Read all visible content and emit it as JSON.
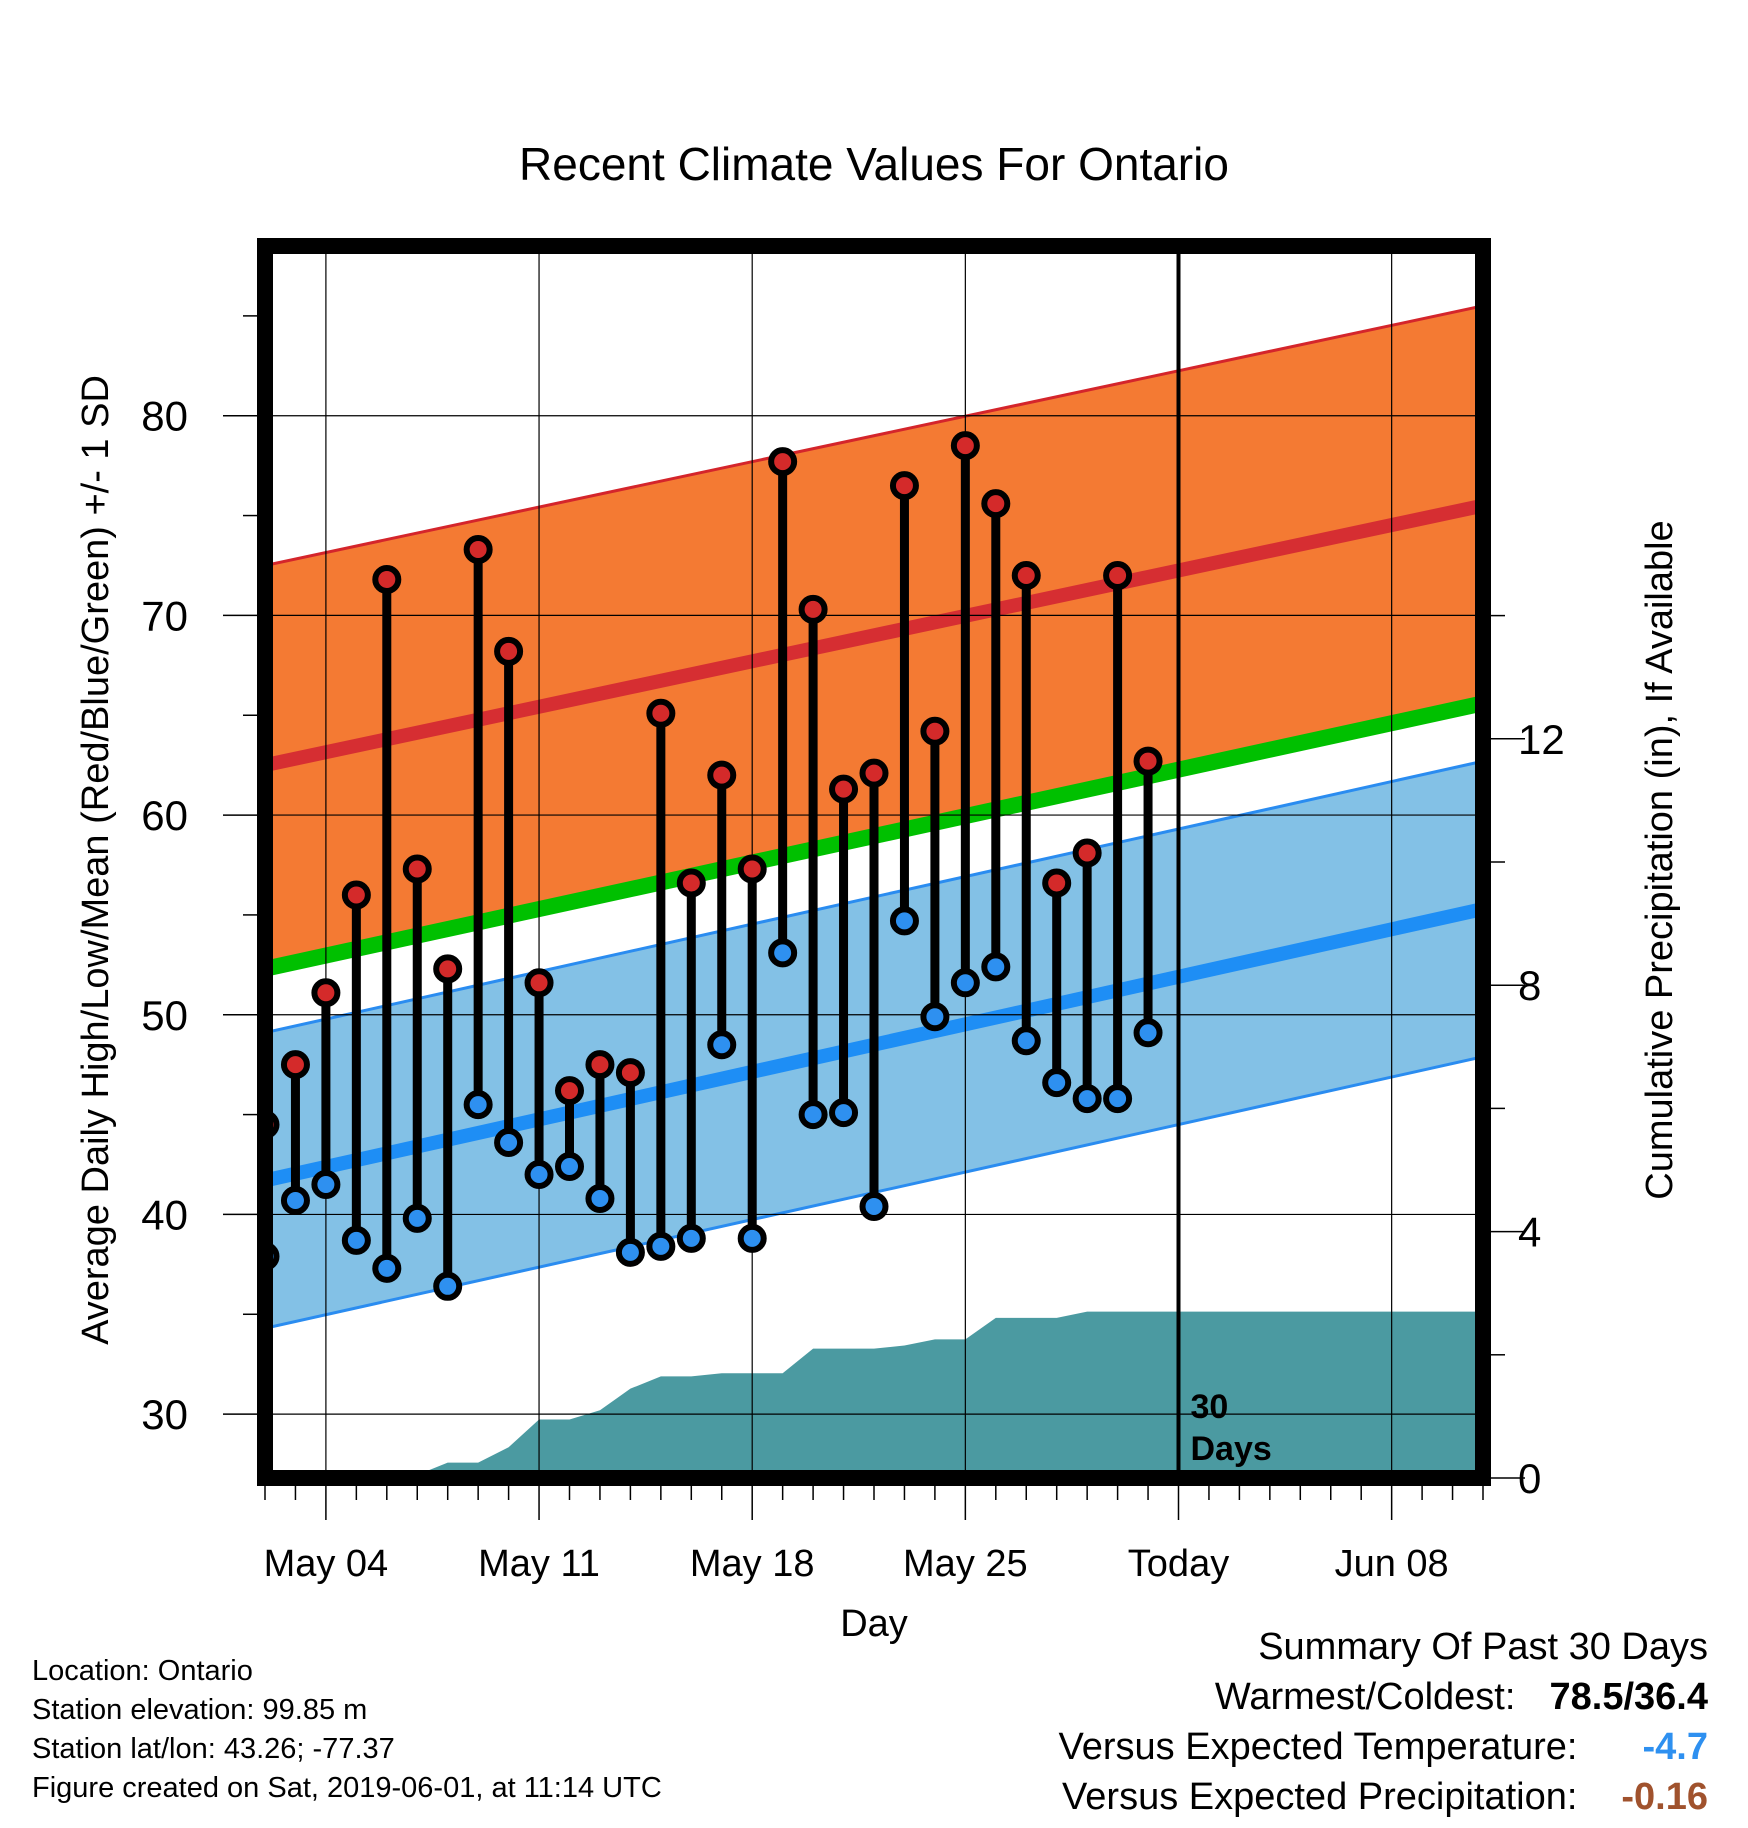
{
  "chart_data": {
    "type": "line",
    "title": "Recent Climate Values For Ontario",
    "xlabel": "Day",
    "ylabel": "Average Daily High/Low/Mean (Red/Blue/Green) +/- 1 SD",
    "ylabel_right": "Cumulative Precipitation (in), If Available",
    "ylim": [
      26.8,
      88.5
    ],
    "ylim_right": [
      0,
      20
    ],
    "x_range_days": [
      -30,
      10
    ],
    "x_ticks": [
      {
        "label": "May 04",
        "day": -28
      },
      {
        "label": "May 11",
        "day": -21
      },
      {
        "label": "May 18",
        "day": -14
      },
      {
        "label": "May 25",
        "day": -7
      },
      {
        "label": "Today",
        "day": 0
      },
      {
        "label": "Jun 08",
        "day": 7
      }
    ],
    "y_ticks": [
      30,
      40,
      50,
      60,
      70,
      80
    ],
    "y_ticks_right": [
      0,
      4,
      8,
      12
    ],
    "today_marker": {
      "day": 0,
      "label_line1": "30",
      "label_line2": "Days"
    },
    "normal_high": {
      "start": 62.5,
      "end": 75.5,
      "sd": 10.0
    },
    "normal_low": {
      "start": 41.7,
      "end": 55.3,
      "sd": 7.4
    },
    "normal_mean": {
      "start": 52.3,
      "end": 65.6
    },
    "observations": {
      "days": [
        -30,
        -29,
        -28,
        -27,
        -26,
        -25,
        -24,
        -23,
        -22,
        -21,
        -20,
        -19,
        -18,
        -17,
        -16,
        -15,
        -14,
        -13,
        -12,
        -11,
        -10,
        -9,
        -8,
        -7,
        -6,
        -5,
        -4,
        -3,
        -2,
        -1
      ],
      "highs": [
        44.5,
        47.5,
        51.1,
        56.0,
        71.8,
        57.3,
        52.3,
        73.3,
        68.2,
        51.6,
        46.2,
        47.5,
        47.1,
        65.1,
        56.6,
        62.0,
        57.3,
        77.7,
        70.3,
        61.3,
        62.1,
        76.5,
        64.2,
        78.5,
        75.6,
        72.0,
        56.6,
        58.1,
        72.0,
        62.7
      ],
      "lows": [
        37.9,
        40.7,
        41.5,
        38.7,
        37.3,
        39.8,
        36.4,
        45.5,
        43.6,
        42.0,
        42.4,
        40.8,
        38.1,
        38.4,
        38.8,
        48.5,
        38.8,
        53.1,
        45.0,
        45.1,
        40.4,
        54.7,
        49.9,
        51.6,
        52.4,
        48.7,
        46.6,
        45.8,
        45.8,
        49.1
      ]
    },
    "precipitation_cumulative": {
      "days": [
        -30,
        -29,
        -28,
        -27,
        -26,
        -25,
        -24,
        -23,
        -22,
        -21,
        -20,
        -19,
        -18,
        -17,
        -16,
        -15,
        -14,
        -13,
        -12,
        -11,
        -10,
        -9,
        -8,
        -7,
        -6,
        -5,
        -4,
        -3,
        -2,
        -1,
        0,
        10
      ],
      "values": [
        0.0,
        0.0,
        0.05,
        0.05,
        0.05,
        0.05,
        0.25,
        0.25,
        0.5,
        0.95,
        0.95,
        1.1,
        1.45,
        1.65,
        1.65,
        1.7,
        1.7,
        1.7,
        2.1,
        2.1,
        2.1,
        2.15,
        2.25,
        2.25,
        2.6,
        2.6,
        2.6,
        2.7,
        2.7,
        2.7,
        2.7,
        2.7
      ]
    },
    "colors": {
      "high_band": "#f47a33",
      "high_band_edge": "#d4252b",
      "high_line": "#d62e32",
      "low_band": "#83c1e6",
      "low_band_edge": "#2a8cf0",
      "low_line": "#1e8ef5",
      "mean_line": "#00c000",
      "precip_fill": "#4b9aa1",
      "high_marker": "#d42a2a",
      "low_marker": "#2e90f0"
    },
    "grid": true
  },
  "info": {
    "location": "Location: Ontario",
    "elevation": "Station elevation: 99.85 m",
    "latlon": "Station lat/lon: 43.26; -77.37",
    "created": "Figure created on Sat, 2019-06-01, at 11:14 UTC"
  },
  "summary": {
    "title": "Summary Of Past 30 Days",
    "warm_cold_label": "Warmest/Coldest:",
    "warm_cold_value": "78.5/36.4",
    "temp_label": "Versus Expected Temperature:",
    "temp_value": "-4.7",
    "temp_color": "#2e90f0",
    "precip_label": "Versus Expected Precipitation:",
    "precip_value": "-0.16",
    "precip_color": "#a0522d"
  }
}
